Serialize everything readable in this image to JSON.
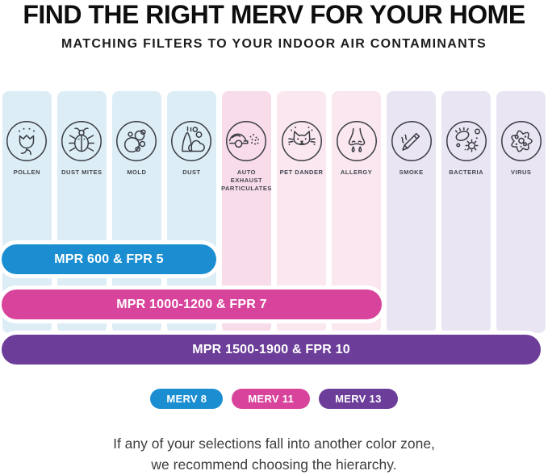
{
  "header": {
    "title": "FIND THE RIGHT MERV FOR YOUR HOME",
    "subtitle": "MATCHING FILTERS TO YOUR INDOOR AIR CONTAMINANTS"
  },
  "zones": {
    "merv8": {
      "name": "MERV 8",
      "bar_color": "#1a8ed1",
      "column_bg": "#dcedf6"
    },
    "merv11": {
      "name": "MERV 11",
      "bar_color": "#d8449c",
      "column_bg": "#fae7f0"
    },
    "merv13": {
      "name": "MERV 13",
      "bar_color": "#6c3d99",
      "column_bg": "#e9e5f2"
    }
  },
  "contaminants": [
    {
      "label": "POLLEN",
      "icon": "pollen-icon",
      "zone": "merv8"
    },
    {
      "label": "DUST MITES",
      "icon": "dust-mite-icon",
      "zone": "merv8"
    },
    {
      "label": "MOLD",
      "icon": "mold-icon",
      "zone": "merv8"
    },
    {
      "label": "DUST",
      "icon": "dust-icon",
      "zone": "merv8"
    },
    {
      "label": "AUTO EXHAUST PARTICULATES",
      "icon": "auto-exhaust-icon",
      "zone": "merv11",
      "bg": "#f8dce9"
    },
    {
      "label": "PET DANDER",
      "icon": "cat-icon",
      "zone": "merv11"
    },
    {
      "label": "ALLERGY",
      "icon": "nose-icon",
      "zone": "merv11"
    },
    {
      "label": "SMOKE",
      "icon": "cigarette-icon",
      "zone": "merv13"
    },
    {
      "label": "BACTERIA",
      "icon": "bacteria-icon",
      "zone": "merv13"
    },
    {
      "label": "VIRUS",
      "icon": "virus-icon",
      "zone": "merv13"
    }
  ],
  "bars": [
    {
      "label": "MPR 600 & FPR 5",
      "zone": "merv8",
      "covers_columns": 4
    },
    {
      "label": "MPR 1000-1200 & FPR 7",
      "zone": "merv11",
      "covers_columns": 7
    },
    {
      "label": "MPR 1500-1900 & FPR 10",
      "zone": "merv13",
      "covers_columns": 10
    }
  ],
  "legend": [
    {
      "label": "MERV 8",
      "zone": "merv8"
    },
    {
      "label": "MERV 11",
      "zone": "merv11"
    },
    {
      "label": "MERV 13",
      "zone": "merv13"
    }
  ],
  "footer": {
    "line1": "If any of your selections fall into another color zone,",
    "line2": "we recommend choosing the hierarchy."
  }
}
